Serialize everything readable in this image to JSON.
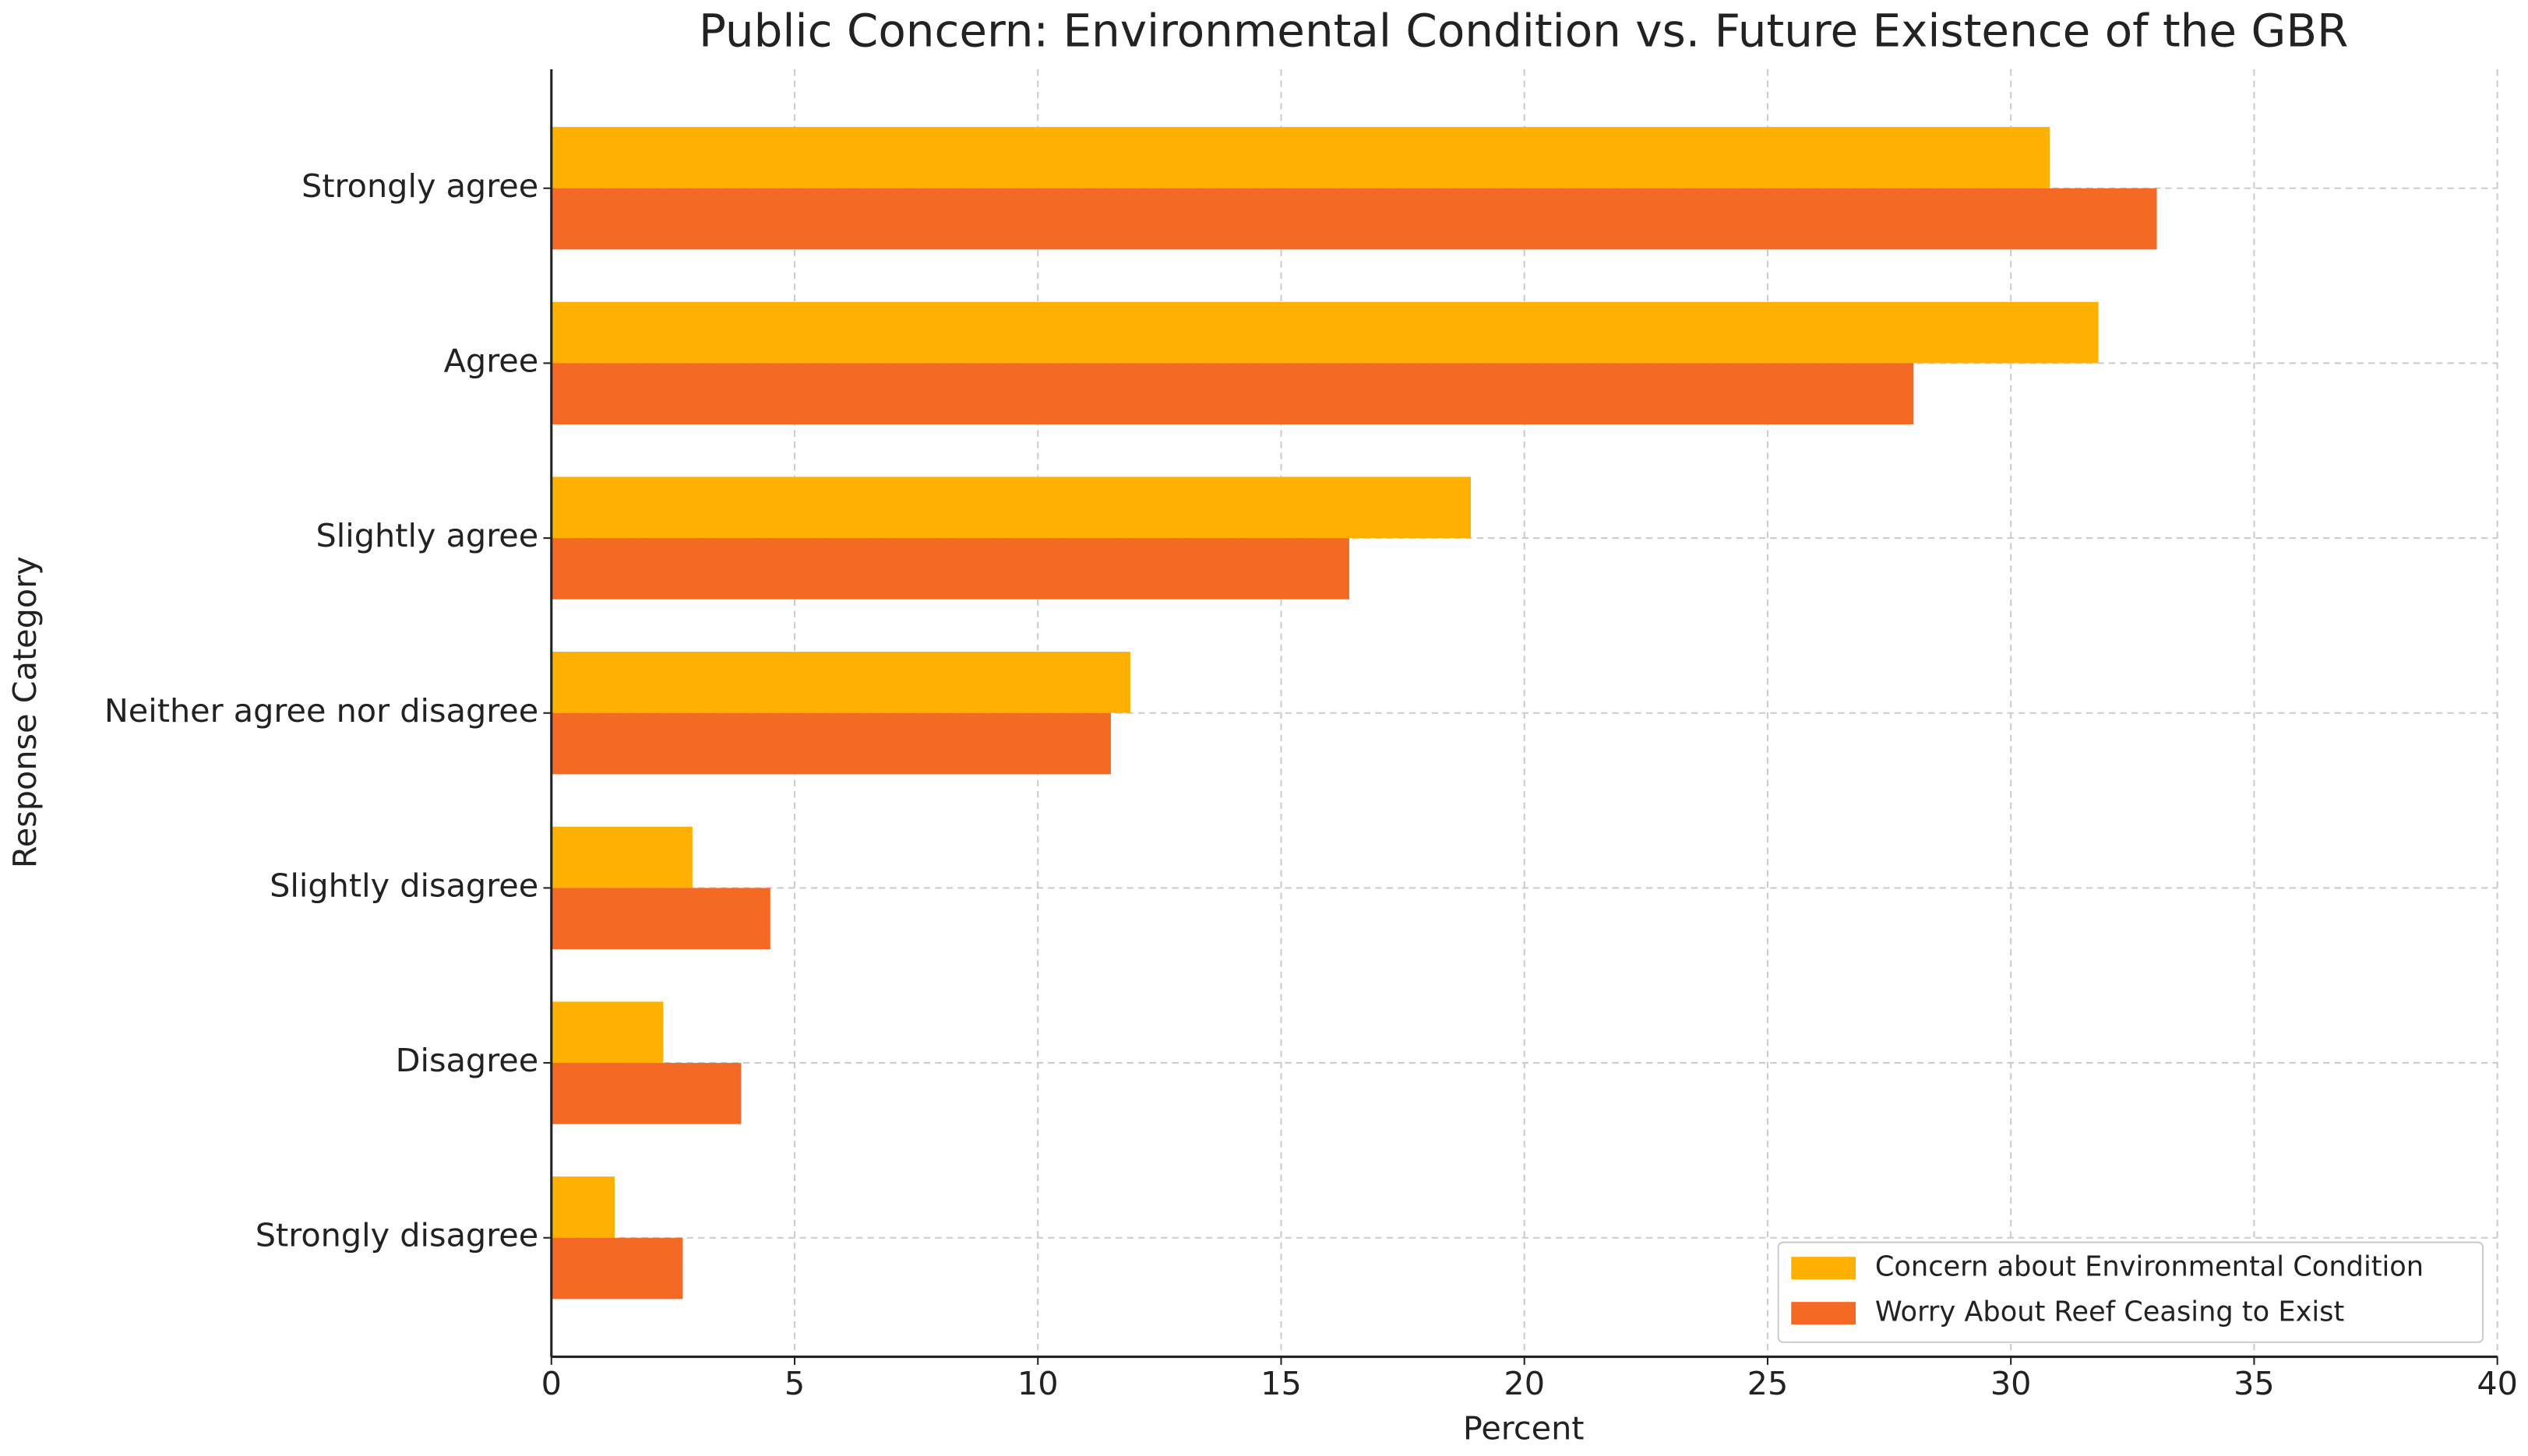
{
  "chart_data": {
    "type": "barh",
    "title": "Public Concern: Environmental Condition vs. Future Existence of the GBR",
    "x_label": "Percent",
    "y_label": "Response Category",
    "categories": [
      "Strongly agree",
      "Agree",
      "Slightly agree",
      "Neither agree nor disagree",
      "Slightly disagree",
      "Disagree",
      "Strongly disagree"
    ],
    "series": [
      {
        "name": "Concern about Environmental Condition",
        "color": "#FFB000",
        "values": [
          30.8,
          31.8,
          18.9,
          11.9,
          2.9,
          2.3,
          1.3
        ]
      },
      {
        "name": "Worry About Reef Ceasing to Exist",
        "color": "#F46A25",
        "values": [
          33.0,
          28.0,
          16.4,
          11.5,
          4.5,
          3.9,
          2.7
        ]
      }
    ],
    "xlim": [
      0,
      40
    ],
    "xticks": [
      0,
      5,
      10,
      15,
      20,
      25,
      30,
      35,
      40
    ],
    "grid": true,
    "legend": "lower right"
  }
}
